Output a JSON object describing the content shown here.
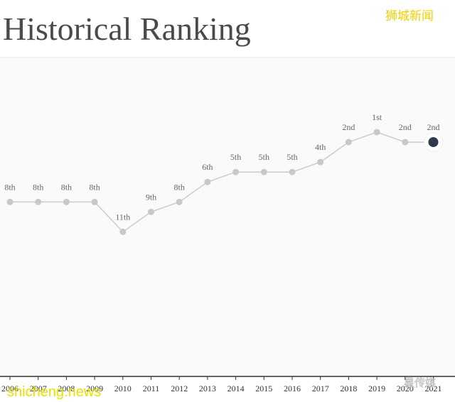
{
  "chart_data": {
    "type": "line",
    "title": "Historical Ranking",
    "categories": [
      "2006",
      "2007",
      "2008",
      "2009",
      "2010",
      "2011",
      "2012",
      "2013",
      "2014",
      "2015",
      "2016",
      "2017",
      "2018",
      "2019",
      "2020",
      "2021"
    ],
    "values": [
      8,
      8,
      8,
      8,
      11,
      9,
      8,
      6,
      5,
      5,
      5,
      4,
      2,
      1,
      2,
      2
    ],
    "value_labels": [
      "8th",
      "8th",
      "8th",
      "8th",
      "11th",
      "9th",
      "8th",
      "6th",
      "5th",
      "5th",
      "5th",
      "4th",
      "2nd",
      "1st",
      "2nd",
      "2nd"
    ],
    "color": "#cccccc",
    "point_colors": [
      "#c8c8c8",
      "#c8c8c8",
      "#c8c8c8",
      "#c8c8c8",
      "#c8c8c8",
      "#c8c8c8",
      "#c8c8c8",
      "#c8c8c8",
      "#c8c8c8",
      "#c8c8c8",
      "#c8c8c8",
      "#c8c8c8",
      "#c8c8c8",
      "#c8c8c8",
      "#c8c8c8",
      "#2e3a4e"
    ],
    "ylim": [
      25.5,
      0
    ],
    "watermarks": [
      "狮城新闻",
      "shicheng.news",
      "星传媒"
    ]
  }
}
